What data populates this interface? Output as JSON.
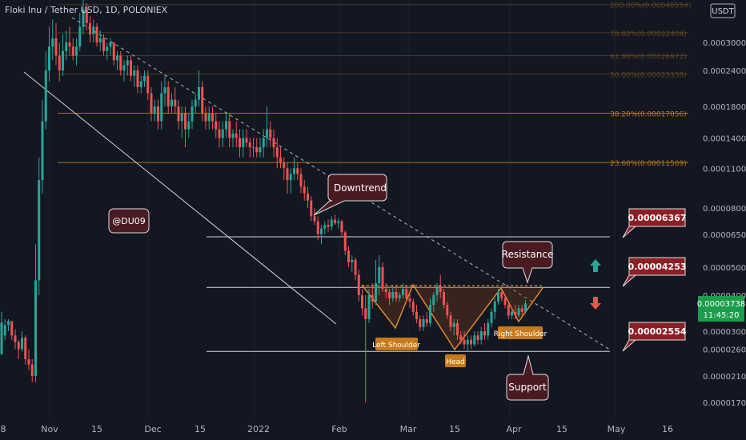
{
  "header": {
    "symbol": "Floki Inu / Tether USD, 1D, POLONIEX",
    "currency": "USDT"
  },
  "watermark": "@DU09",
  "annotations": {
    "downtrend": "Downtrend",
    "resistance": "Resistance",
    "support": "Support",
    "left_shoulder": "Left Shoulder",
    "head": "Head",
    "right_shoulder": "Right Shoulder"
  },
  "level_badges": {
    "upper": "0.00006367",
    "middle": "0.00004253",
    "lower": "0.00002554"
  },
  "price_tag": {
    "price": "0.00003738",
    "countdown": "11:45:20"
  },
  "colors": {
    "background": "#131722",
    "up": "#26a69a",
    "down": "#ef5350",
    "fib": "#b87a1a",
    "badge": "#8b1f26",
    "text": "#b2b5be",
    "price_tag": "#1b9e4b"
  },
  "chart_data": {
    "type": "candlestick",
    "y_scale": "log",
    "y_ticks": [
      "0.00030000",
      "0.00024000",
      "0.00018000",
      "0.00014000",
      "0.00011000",
      "0.00008000",
      "0.00006500",
      "0.00005000",
      "0.00004000",
      "0.00003000",
      "0.00002600",
      "0.00002100",
      "0.00001700"
    ],
    "x_ticks": [
      "8",
      "Nov",
      "15",
      "Dec",
      "15",
      "2022",
      "Feb",
      "Mar",
      "15",
      "Apr",
      "15",
      "May",
      "16"
    ],
    "fib_levels": [
      {
        "label": "100.00%(0.00040554)",
        "value": 0.00040554
      },
      {
        "label": "78.60%(0.00032404)",
        "value": 0.00032404
      },
      {
        "label": "61.80%(0.00026972)",
        "value": 0.00026972
      },
      {
        "label": "50.00%(0.00023339)",
        "value": 0.00023339
      },
      {
        "label": "38.20%(0.00017056)",
        "value": 0.00017056
      },
      {
        "label": "23.60%(0.00011509)",
        "value": 0.00011509
      }
    ],
    "horizontal_levels": [
      6.367e-05,
      4.253e-05,
      2.554e-05
    ],
    "candles": [
      [
        2.5e-05,
        3.5e-05,
        2.48e-05,
        3.22e-05
      ],
      [
        2.9e-05,
        3.3e-05,
        2.8e-05,
        3.15e-05
      ],
      [
        3.15e-05,
        3.3e-05,
        3e-05,
        3.25e-05
      ],
      [
        3.25e-05,
        3.25e-05,
        2.8e-05,
        2.9e-05
      ],
      [
        2.9e-05,
        3.05e-05,
        2.6e-05,
        2.75e-05
      ],
      [
        2.75e-05,
        2.8e-05,
        2.4e-05,
        2.6e-05
      ],
      [
        2.6e-05,
        3e-05,
        2.55e-05,
        2.85e-05
      ],
      [
        2.85e-05,
        2.9e-05,
        2.3e-05,
        2.4e-05
      ],
      [
        2.4e-05,
        2.6e-05,
        2.2e-05,
        2.3e-05
      ],
      [
        2.3e-05,
        2.4e-05,
        2e-05,
        2.1e-05
      ],
      [
        2.1e-05,
        6e-05,
        2e-05,
        4.5e-05
      ],
      [
        4.5e-05,
        0.00012,
        4e-05,
        0.0001
      ],
      [
        0.0001,
        0.00019,
        9e-05,
        0.00016
      ],
      [
        0.00016,
        0.00028,
        0.00015,
        0.00024
      ],
      [
        0.00024,
        0.00034,
        0.00022,
        0.00029
      ],
      [
        0.00029,
        0.00036,
        0.00026,
        0.00031
      ],
      [
        0.00031,
        0.00035,
        0.00025,
        0.00027
      ],
      [
        0.00027,
        0.0003,
        0.00022,
        0.00024
      ],
      [
        0.00024,
        0.00032,
        0.00023,
        0.00028
      ],
      [
        0.00028,
        0.00033,
        0.00026,
        0.0003
      ],
      [
        0.0003,
        0.00034,
        0.00027,
        0.00029
      ],
      [
        0.00029,
        0.00031,
        0.00026,
        0.00027
      ],
      [
        0.00027,
        0.00031,
        0.00025,
        0.00029
      ],
      [
        0.00029,
        0.00038,
        0.00028,
        0.00034
      ],
      [
        0.00034,
        0.00044,
        0.00032,
        0.00039
      ],
      [
        0.00039,
        0.00041,
        0.00033,
        0.00035
      ],
      [
        0.00035,
        0.00037,
        0.0003,
        0.00032
      ],
      [
        0.00032,
        0.00036,
        0.0003,
        0.00034
      ],
      [
        0.00034,
        0.00035,
        0.00029,
        0.0003
      ],
      [
        0.0003,
        0.00033,
        0.00028,
        0.00031
      ],
      [
        0.00031,
        0.00032,
        0.00027,
        0.00028
      ],
      [
        0.00028,
        0.0003,
        0.00026,
        0.00029
      ],
      [
        0.00029,
        0.00031,
        0.00027,
        0.0003
      ],
      [
        0.0003,
        0.0003,
        0.00025,
        0.00026
      ],
      [
        0.00026,
        0.00028,
        0.00024,
        0.00027
      ],
      [
        0.00027,
        0.00028,
        0.00023,
        0.00024
      ],
      [
        0.00024,
        0.00026,
        0.00022,
        0.00025
      ],
      [
        0.00025,
        0.00027,
        0.00023,
        0.00026
      ],
      [
        0.00026,
        0.00027,
        0.00022,
        0.00023
      ],
      [
        0.00023,
        0.00025,
        0.00021,
        0.00024
      ],
      [
        0.00024,
        0.00025,
        0.0002,
        0.00021
      ],
      [
        0.00021,
        0.00023,
        0.0002,
        0.00022
      ],
      [
        0.00022,
        0.00024,
        0.00021,
        0.00023
      ],
      [
        0.00023,
        0.00024,
        0.00019,
        0.0002
      ],
      [
        0.0002,
        0.00021,
        0.00016,
        0.00017
      ],
      [
        0.00017,
        0.00019,
        0.00016,
        0.00018
      ],
      [
        0.00018,
        0.00019,
        0.00015,
        0.00016
      ],
      [
        0.00016,
        0.00022,
        0.00015,
        0.0002
      ],
      [
        0.0002,
        0.00023,
        0.00018,
        0.00021
      ],
      [
        0.00021,
        0.00022,
        0.00017,
        0.00018
      ],
      [
        0.00018,
        0.0002,
        0.00017,
        0.00019
      ],
      [
        0.00019,
        0.00021,
        0.00017,
        0.00018
      ],
      [
        0.00018,
        0.00019,
        0.00015,
        0.00016
      ],
      [
        0.00016,
        0.00018,
        0.00014,
        0.00017
      ],
      [
        0.00017,
        0.00018,
        0.00013,
        0.00015
      ],
      [
        0.00015,
        0.00017,
        0.00014,
        0.00016
      ],
      [
        0.00016,
        0.00019,
        0.00015,
        0.00018
      ],
      [
        0.00018,
        0.0002,
        0.00017,
        0.00019
      ],
      [
        0.00019,
        0.00024,
        0.00018,
        0.00021
      ],
      [
        0.00021,
        0.00022,
        0.00016,
        0.00017
      ],
      [
        0.00017,
        0.00018,
        0.00015,
        0.00016
      ],
      [
        0.00016,
        0.00018,
        0.00015,
        0.00017
      ],
      [
        0.00017,
        0.00018,
        0.00015,
        0.00016
      ],
      [
        0.00016,
        0.00017,
        0.00014,
        0.00015
      ],
      [
        0.00015,
        0.00016,
        0.00013,
        0.00014
      ],
      [
        0.00014,
        0.00016,
        0.00013,
        0.00015
      ],
      [
        0.00015,
        0.00017,
        0.00014,
        0.00016
      ],
      [
        0.00016,
        0.00017,
        0.00013,
        0.00014
      ],
      [
        0.00014,
        0.00015,
        0.00013,
        0.000145
      ],
      [
        0.000145,
        0.00016,
        0.00013,
        0.00014
      ],
      [
        0.00014,
        0.00015,
        0.00012,
        0.00013
      ],
      [
        0.00013,
        0.00015,
        0.00012,
        0.00014
      ],
      [
        0.00014,
        0.00015,
        0.00013,
        0.000135
      ],
      [
        0.000135,
        0.00014,
        0.00012,
        0.00013
      ],
      [
        0.00013,
        0.00014,
        0.00012,
        0.00013
      ],
      [
        0.00013,
        0.00014,
        0.00012,
        0.000125
      ],
      [
        0.000125,
        0.00014,
        0.00012,
        0.00013
      ],
      [
        0.00013,
        0.00015,
        0.00012,
        0.00014
      ],
      [
        0.00014,
        0.00018,
        0.00013,
        0.00015
      ],
      [
        0.00015,
        0.00016,
        0.00013,
        0.00014
      ],
      [
        0.00014,
        0.00015,
        0.00012,
        0.00013
      ],
      [
        0.00013,
        0.00014,
        0.00011,
        0.00012
      ],
      [
        0.00012,
        0.00013,
        0.00011,
        0.000115
      ],
      [
        0.000115,
        0.00012,
        0.0001,
        0.00011
      ],
      [
        0.00011,
        0.000115,
        9e-05,
        0.0001
      ],
      [
        0.0001,
        0.00011,
        9e-05,
        0.000105
      ],
      [
        0.000105,
        0.00012,
        0.0001,
        0.00011
      ],
      [
        0.00011,
        0.000115,
        0.0001,
        0.000105
      ],
      [
        0.000105,
        0.00011,
        9e-05,
        9.5e-05
      ],
      [
        9.5e-05,
        0.0001,
        8.5e-05,
        9e-05
      ],
      [
        9e-05,
        9.5e-05,
        8e-05,
        8.5e-05
      ],
      [
        8.5e-05,
        8.8e-05,
        7.2e-05,
        7.5e-05
      ],
      [
        7.5e-05,
        8e-05,
        7e-05,
        7.2e-05
      ],
      [
        7.2e-05,
        7.5e-05,
        6.2e-05,
        6.5e-05
      ],
      [
        6.5e-05,
        7e-05,
        6e-05,
        6.8e-05
      ],
      [
        6.8e-05,
        7.2e-05,
        6.5e-05,
        7e-05
      ],
      [
        7e-05,
        7.3e-05,
        6.6e-05,
        6.9e-05
      ],
      [
        6.9e-05,
        7.5e-05,
        6.7e-05,
        7.3e-05
      ],
      [
        7.3e-05,
        7.6e-05,
        7e-05,
        7.1e-05
      ],
      [
        7.1e-05,
        7.4e-05,
        6.8e-05,
        7.2e-05
      ],
      [
        7.2e-05,
        7.3e-05,
        6.4e-05,
        6.6e-05
      ],
      [
        6.6e-05,
        6.7e-05,
        5.5e-05,
        5.7e-05
      ],
      [
        5.7e-05,
        5.9e-05,
        5e-05,
        5.2e-05
      ],
      [
        5.2e-05,
        5.5e-05,
        4.8e-05,
        5.3e-05
      ],
      [
        5.3e-05,
        5.4e-05,
        4.5e-05,
        4.7e-05
      ],
      [
        4.7e-05,
        4.9e-05,
        3.8e-05,
        4e-05
      ],
      [
        4e-05,
        4.2e-05,
        3.4e-05,
        3.6e-05
      ],
      [
        3.6e-05,
        4e-05,
        1.7e-05,
        3.3e-05
      ],
      [
        3.3e-05,
        4.2e-05,
        3.2e-05,
        4e-05
      ],
      [
        4e-05,
        4.4e-05,
        3.6e-05,
        3.8e-05
      ],
      [
        3.8e-05,
        5.3e-05,
        3.7e-05,
        4.4e-05
      ],
      [
        4.4e-05,
        5.5e-05,
        4e-05,
        5e-05
      ],
      [
        5e-05,
        5.2e-05,
        4.1e-05,
        4.2e-05
      ],
      [
        4.2e-05,
        4.4e-05,
        3.9e-05,
        4.1e-05
      ],
      [
        4.1e-05,
        4.2e-05,
        3.7e-05,
        3.9e-05
      ],
      [
        3.9e-05,
        4.3e-05,
        3.8e-05,
        4.1e-05
      ],
      [
        4.1e-05,
        4.3e-05,
        3.8e-05,
        3.9e-05
      ],
      [
        3.9e-05,
        4.1e-05,
        3.8e-05,
        4e-05
      ],
      [
        4e-05,
        4.4e-05,
        3.9e-05,
        4.2e-05
      ],
      [
        4.2e-05,
        4.3e-05,
        3.8e-05,
        3.9e-05
      ],
      [
        3.9e-05,
        4.1e-05,
        3.6e-05,
        3.8e-05
      ],
      [
        3.8e-05,
        3.9e-05,
        3.4e-05,
        3.5e-05
      ],
      [
        3.5e-05,
        3.7e-05,
        3.2e-05,
        3.3e-05
      ],
      [
        3.3e-05,
        3.4e-05,
        3e-05,
        3.1e-05
      ],
      [
        3.1e-05,
        3.4e-05,
        3e-05,
        3.3e-05
      ],
      [
        3.3e-05,
        3.5e-05,
        3.1e-05,
        3.2e-05
      ],
      [
        3.2e-05,
        3.9e-05,
        3.1e-05,
        3.7e-05
      ],
      [
        3.7e-05,
        4.1e-05,
        3.5e-05,
        4e-05
      ],
      [
        4e-05,
        4.4e-05,
        3.8e-05,
        4.3e-05
      ],
      [
        4.3e-05,
        4.7e-05,
        3.9e-05,
        4.1e-05
      ],
      [
        4.1e-05,
        4.2e-05,
        3.6e-05,
        3.7e-05
      ],
      [
        3.7e-05,
        3.8e-05,
        3.3e-05,
        3.4e-05
      ],
      [
        3.4e-05,
        3.5e-05,
        3e-05,
        3.1e-05
      ],
      [
        3.1e-05,
        3.3e-05,
        2.9e-05,
        3.2e-05
      ],
      [
        3.2e-05,
        3.3e-05,
        2.8e-05,
        2.9e-05
      ],
      [
        2.9e-05,
        3e-05,
        2.7e-05,
        2.8e-05
      ],
      [
        2.8e-05,
        3e-05,
        2.6e-05,
        2.7e-05
      ],
      [
        2.7e-05,
        2.9e-05,
        2.55e-05,
        2.8e-05
      ],
      [
        2.8e-05,
        2.9e-05,
        2.6e-05,
        2.7e-05
      ],
      [
        2.7e-05,
        3e-05,
        2.65e-05,
        2.9e-05
      ],
      [
        2.9e-05,
        3e-05,
        2.7e-05,
        2.8e-05
      ],
      [
        2.8e-05,
        3.1e-05,
        2.7e-05,
        3e-05
      ],
      [
        3e-05,
        3.2e-05,
        2.8e-05,
        2.9e-05
      ],
      [
        2.9e-05,
        3.3e-05,
        2.8e-05,
        3.2e-05
      ],
      [
        3.2e-05,
        3.6e-05,
        3.1e-05,
        3.5e-05
      ],
      [
        3.5e-05,
        3.9e-05,
        3.3e-05,
        3.8e-05
      ],
      [
        3.8e-05,
        4.2e-05,
        3.7e-05,
        4.1e-05
      ],
      [
        4.1e-05,
        4.2e-05,
        3.8e-05,
        3.9e-05
      ],
      [
        3.9e-05,
        4e-05,
        3.6e-05,
        3.7e-05
      ],
      [
        3.7e-05,
        3.8e-05,
        3.3e-05,
        3.4e-05
      ],
      [
        3.4e-05,
        3.6e-05,
        3.3e-05,
        3.5e-05
      ],
      [
        3.5e-05,
        3.7e-05,
        3.3e-05,
        3.4e-05
      ],
      [
        3.4e-05,
        3.7e-05,
        3.35e-05,
        3.6e-05
      ],
      [
        3.6e-05,
        3.7e-05,
        3.4e-05,
        3.5e-05
      ],
      [
        3.5e-05,
        3.85e-05,
        3.45e-05,
        3.74e-05
      ]
    ],
    "annotations": [
      "Downtrend",
      "Resistance",
      "Support",
      "Left Shoulder",
      "Head",
      "Right Shoulder",
      "@DU09"
    ]
  }
}
